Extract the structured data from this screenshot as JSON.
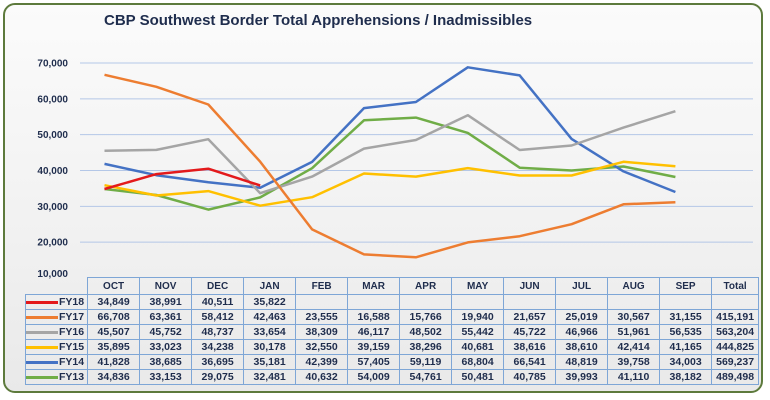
{
  "chart_data": {
    "type": "line",
    "title": "CBP Southwest Border Total Apprehensions / Inadmissibles",
    "xlabel": "",
    "ylabel": "",
    "ylim": [
      10000,
      70000
    ],
    "yticks": [
      "10,000",
      "20,000",
      "30,000",
      "40,000",
      "50,000",
      "60,000",
      "70,000"
    ],
    "ytick_values": [
      10000,
      20000,
      30000,
      40000,
      50000,
      60000,
      70000
    ],
    "grid": true,
    "legend": "table-bottom",
    "categories": [
      "OCT",
      "NOV",
      "DEC",
      "JAN",
      "FEB",
      "MAR",
      "APR",
      "MAY",
      "JUN",
      "JUL",
      "AUG",
      "SEP"
    ],
    "total_label": "Total",
    "series": [
      {
        "name": "FY18",
        "color": "#e31a1c",
        "values": [
          34849,
          38991,
          40511,
          35822,
          null,
          null,
          null,
          null,
          null,
          null,
          null,
          null
        ],
        "display": [
          "34,849",
          "38,991",
          "40,511",
          "35,822",
          "",
          "",
          "",
          "",
          "",
          "",
          "",
          ""
        ],
        "total": ""
      },
      {
        "name": "FY17",
        "color": "#ed7d31",
        "values": [
          66708,
          63361,
          58412,
          42463,
          23555,
          16588,
          15766,
          19940,
          21657,
          25019,
          30567,
          31155
        ],
        "display": [
          "66,708",
          "63,361",
          "58,412",
          "42,463",
          "23,555",
          "16,588",
          "15,766",
          "19,940",
          "21,657",
          "25,019",
          "30,567",
          "31,155"
        ],
        "total": "415,191"
      },
      {
        "name": "FY16",
        "color": "#a5a5a5",
        "values": [
          45507,
          45752,
          48737,
          33654,
          38309,
          46117,
          48502,
          55442,
          45722,
          46966,
          51961,
          56535
        ],
        "display": [
          "45,507",
          "45,752",
          "48,737",
          "33,654",
          "38,309",
          "46,117",
          "48,502",
          "55,442",
          "45,722",
          "46,966",
          "51,961",
          "56,535"
        ],
        "total": "563,204"
      },
      {
        "name": "FY15",
        "color": "#ffc000",
        "values": [
          35895,
          33023,
          34238,
          30178,
          32550,
          39159,
          38296,
          40681,
          38616,
          38610,
          42414,
          41165
        ],
        "display": [
          "35,895",
          "33,023",
          "34,238",
          "30,178",
          "32,550",
          "39,159",
          "38,296",
          "40,681",
          "38,616",
          "38,610",
          "42,414",
          "41,165"
        ],
        "total": "444,825"
      },
      {
        "name": "FY14",
        "color": "#4472c4",
        "values": [
          41828,
          38685,
          36695,
          35181,
          42399,
          57405,
          59119,
          68804,
          66541,
          48819,
          39758,
          34003
        ],
        "display": [
          "41,828",
          "38,685",
          "36,695",
          "35,181",
          "42,399",
          "57,405",
          "59,119",
          "68,804",
          "66,541",
          "48,819",
          "39,758",
          "34,003"
        ],
        "total": "569,237"
      },
      {
        "name": "FY13",
        "color": "#70ad47",
        "values": [
          34836,
          33153,
          29075,
          32481,
          40632,
          54009,
          54761,
          50481,
          40785,
          39993,
          41110,
          38182
        ],
        "display": [
          "34,836",
          "33,153",
          "29,075",
          "32,481",
          "40,632",
          "54,009",
          "54,761",
          "50,481",
          "40,785",
          "39,993",
          "41,110",
          "38,182"
        ],
        "total": "489,498"
      }
    ]
  }
}
